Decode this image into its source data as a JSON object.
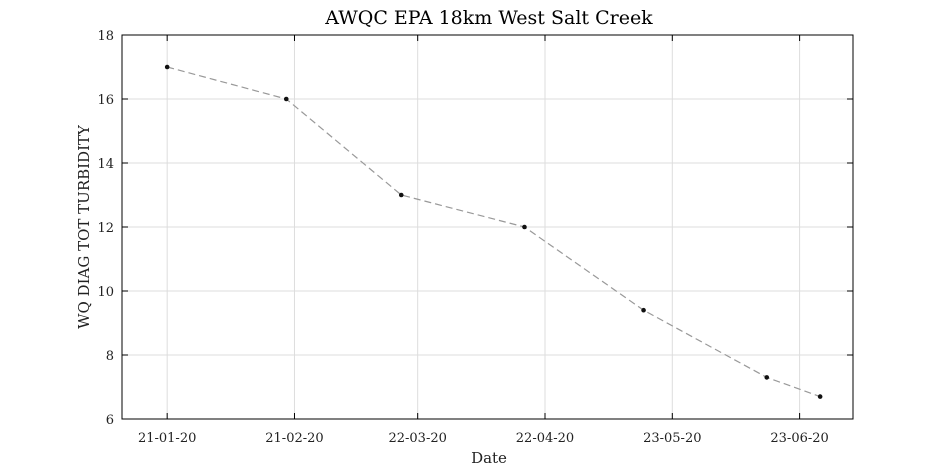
{
  "chart_data": {
    "type": "line",
    "title": "AWQC EPA 18km West Salt Creek",
    "xlabel": "Date",
    "ylabel": "WQ DIAG TOT TURBIDITY",
    "x_ticks": [
      "2020-01-21",
      "2020-02-21",
      "2020-03-22",
      "2020-04-22",
      "2020-05-23",
      "2020-06-23"
    ],
    "x_tick_labels": [
      "21-01-20",
      "21-02-20",
      "22-03-20",
      "22-04-20",
      "23-05-20",
      "23-06-20"
    ],
    "xlim": [
      "2020-01-10",
      "2020-07-06"
    ],
    "y_ticks": [
      6,
      8,
      10,
      12,
      14,
      16,
      18
    ],
    "y_tick_labels": [
      "6",
      "8",
      "10",
      "12",
      "14",
      "16",
      "18"
    ],
    "ylim": [
      6,
      18
    ],
    "grid": true,
    "series": [
      {
        "style": "dashed line with dot markers",
        "color": "#999999",
        "marker_color": "#111111",
        "points": [
          {
            "x": "2020-01-21",
            "y": 17.0
          },
          {
            "x": "2020-02-19",
            "y": 16.0
          },
          {
            "x": "2020-03-18",
            "y": 13.0
          },
          {
            "x": "2020-04-17",
            "y": 12.0
          },
          {
            "x": "2020-05-16",
            "y": 9.4
          },
          {
            "x": "2020-06-15",
            "y": 7.3
          },
          {
            "x": "2020-06-28",
            "y": 6.7
          }
        ]
      }
    ]
  }
}
